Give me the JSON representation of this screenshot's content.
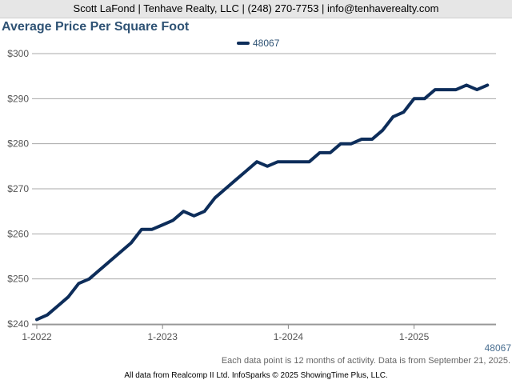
{
  "header": {
    "contact_line": "Scott LaFond | Tenhave Realty, LLC | (248) 270-7753 | info@tenhaverealty.com"
  },
  "chart_data": {
    "type": "line",
    "title": "Average Price Per Square Foot",
    "xlabel": "",
    "ylabel": "",
    "ylim": [
      240,
      300
    ],
    "yticks": [
      {
        "value": 240,
        "label": "$240"
      },
      {
        "value": 250,
        "label": "$250"
      },
      {
        "value": 260,
        "label": "$260"
      },
      {
        "value": 270,
        "label": "$270"
      },
      {
        "value": 280,
        "label": "$280"
      },
      {
        "value": 290,
        "label": "$290"
      },
      {
        "value": 300,
        "label": "$300"
      }
    ],
    "xticks": [
      "1-2022",
      "1-2023",
      "1-2024",
      "1-2025"
    ],
    "grid": true,
    "legend_position": "top",
    "line_color": "#0d2d5a",
    "series": [
      {
        "name": "48067",
        "x": [
          "1-2022",
          "2-2022",
          "3-2022",
          "4-2022",
          "5-2022",
          "6-2022",
          "7-2022",
          "8-2022",
          "9-2022",
          "10-2022",
          "11-2022",
          "12-2022",
          "1-2023",
          "2-2023",
          "3-2023",
          "4-2023",
          "5-2023",
          "6-2023",
          "7-2023",
          "8-2023",
          "9-2023",
          "10-2023",
          "11-2023",
          "12-2023",
          "1-2024",
          "2-2024",
          "3-2024",
          "4-2024",
          "5-2024",
          "6-2024",
          "7-2024",
          "8-2024",
          "9-2024",
          "10-2024",
          "11-2024",
          "12-2024",
          "1-2025",
          "2-2025",
          "3-2025",
          "4-2025",
          "5-2025",
          "6-2025",
          "7-2025",
          "8-2025"
        ],
        "values": [
          241,
          242,
          244,
          246,
          249,
          250,
          252,
          254,
          256,
          258,
          261,
          261,
          262,
          263,
          265,
          264,
          265,
          268,
          270,
          272,
          274,
          276,
          275,
          276,
          276,
          276,
          276,
          278,
          278,
          280,
          280,
          281,
          281,
          283,
          286,
          287,
          290,
          290,
          292,
          292,
          292,
          293,
          292,
          293
        ]
      }
    ]
  },
  "end_label": "48067",
  "footnote": "Each data point is 12 months of activity. Data is from September 21, 2025.",
  "source": "All data from Realcomp II Ltd. InfoSparks © 2025 ShowingTime Plus, LLC."
}
